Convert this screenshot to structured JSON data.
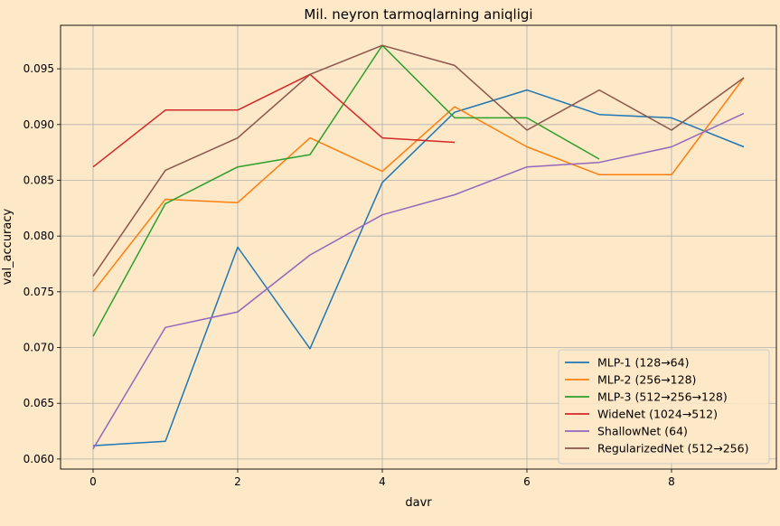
{
  "chart_data": {
    "type": "line",
    "title": "Mil. neyron tarmoqlarning aniqligi",
    "xlabel": "davr",
    "ylabel": "val_accuracy",
    "xlim": [
      -0.45,
      9.45
    ],
    "ylim": [
      0.0591,
      0.0989
    ],
    "xticks": [
      0,
      2,
      4,
      6,
      8
    ],
    "yticks": [
      0.06,
      0.065,
      0.07,
      0.075,
      0.08,
      0.085,
      0.09,
      0.095
    ],
    "ytick_labels": [
      "0.060",
      "0.065",
      "0.070",
      "0.075",
      "0.080",
      "0.085",
      "0.090",
      "0.095"
    ],
    "grid": true,
    "legend_position": "lower-right",
    "series": [
      {
        "name": "MLP-1 (128→64)",
        "color": "#1f77b4",
        "x": [
          0,
          1,
          2,
          3,
          4,
          5,
          6,
          7,
          8,
          9
        ],
        "values": [
          0.0612,
          0.0616,
          0.079,
          0.0699,
          0.0848,
          0.0911,
          0.0931,
          0.0909,
          0.0906,
          0.088
        ]
      },
      {
        "name": "MLP-2 (256→128)",
        "color": "#ff7f0e",
        "x": [
          0,
          1,
          2,
          3,
          4,
          5,
          6,
          7,
          8,
          9
        ],
        "values": [
          0.075,
          0.0833,
          0.083,
          0.0888,
          0.0858,
          0.0916,
          0.088,
          0.0855,
          0.0855,
          0.0942
        ]
      },
      {
        "name": "MLP-3 (512→256→128)",
        "color": "#2ca02c",
        "x": [
          0,
          1,
          2,
          3,
          4,
          5,
          6,
          7
        ],
        "values": [
          0.071,
          0.0829,
          0.0862,
          0.0873,
          0.0971,
          0.0906,
          0.0906,
          0.0869
        ]
      },
      {
        "name": "WideNet (1024→512)",
        "color": "#d62728",
        "x": [
          0,
          1,
          2,
          3,
          4,
          5
        ],
        "values": [
          0.0862,
          0.0913,
          0.0913,
          0.0945,
          0.0888,
          0.0884
        ]
      },
      {
        "name": "ShallowNet (64)",
        "color": "#9467bd",
        "x": [
          0,
          1,
          2,
          3,
          4,
          5,
          6,
          7,
          8,
          9
        ],
        "values": [
          0.0609,
          0.0718,
          0.0732,
          0.0783,
          0.0819,
          0.0837,
          0.0862,
          0.0866,
          0.088,
          0.091
        ]
      },
      {
        "name": "RegularizedNet (512→256)",
        "color": "#8c564b",
        "x": [
          0,
          1,
          2,
          3,
          4,
          5,
          6,
          7,
          8,
          9
        ],
        "values": [
          0.0764,
          0.0859,
          0.0888,
          0.0945,
          0.0971,
          0.0953,
          0.0895,
          0.0931,
          0.0895,
          0.0942
        ]
      }
    ]
  }
}
